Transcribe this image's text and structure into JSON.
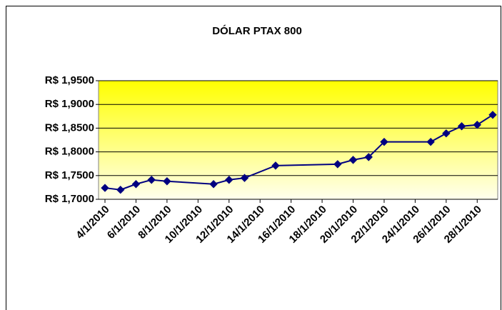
{
  "chart_data": {
    "type": "line",
    "title": "DÓLAR PTAX 800",
    "x": [
      "4/1/2010",
      "5/1/2010",
      "6/1/2010",
      "7/1/2010",
      "8/1/2010",
      "11/1/2010",
      "12/1/2010",
      "13/1/2010",
      "15/1/2010",
      "19/1/2010",
      "20/1/2010",
      "21/1/2010",
      "22/1/2010",
      "25/1/2010",
      "26/1/2010",
      "27/1/2010",
      "28/1/2010",
      "29/1/2010"
    ],
    "series": [
      {
        "color": "#000080",
        "values": [
          1.724,
          1.72,
          1.732,
          1.741,
          1.738,
          1.732,
          1.741,
          1.745,
          1.771,
          1.774,
          1.783,
          1.789,
          1.821,
          1.821,
          1.839,
          1.854,
          1.857,
          1.878
        ]
      }
    ],
    "xlim": [
      "4/1/2010",
      "29/1/2010"
    ],
    "xticks": [
      "4/1/2010",
      "6/1/2010",
      "8/1/2010",
      "10/1/2010",
      "12/1/2010",
      "14/1/2010",
      "16/1/2010",
      "18/1/2010",
      "20/1/2010",
      "22/1/2010",
      "24/1/2010",
      "26/1/2010",
      "28/1/2010"
    ],
    "ylim": [
      1.7,
      1.95
    ],
    "yticks": [
      {
        "value": 1.7,
        "label": "R$ 1,7000"
      },
      {
        "value": 1.75,
        "label": "R$ 1,7500"
      },
      {
        "value": 1.8,
        "label": "R$ 1,8000"
      },
      {
        "value": 1.85,
        "label": "R$ 1,8500"
      },
      {
        "value": 1.9,
        "label": "R$ 1,9000"
      },
      {
        "value": 1.95,
        "label": "R$ 1,9500"
      }
    ],
    "grid": true
  }
}
